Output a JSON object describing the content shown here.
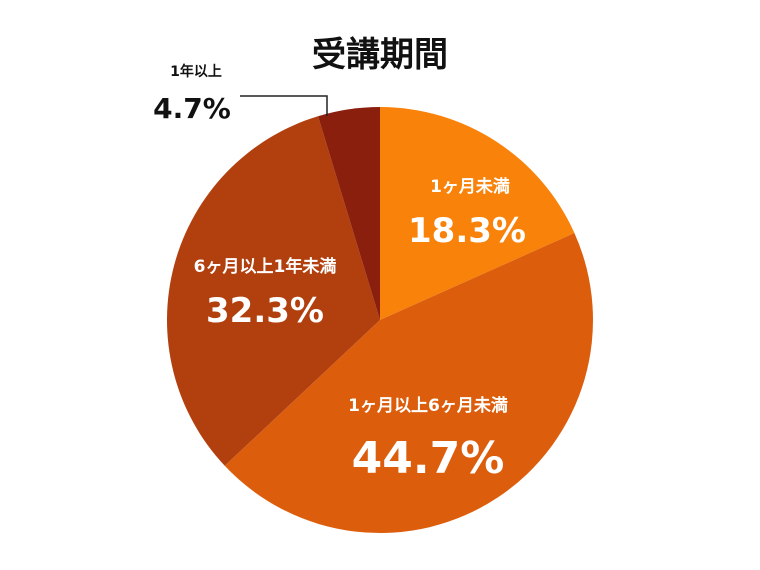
{
  "chart_data": {
    "type": "pie",
    "title": "受講期間",
    "start_angle_deg": 0,
    "direction": "clockwise",
    "slices": [
      {
        "label": "1ヶ月未満",
        "value": 18.3,
        "value_label": "18.3%",
        "color": "#F8820A"
      },
      {
        "label": "1ヶ月以上6ヶ月未満",
        "value": 44.7,
        "value_label": "44.7%",
        "color": "#DC5E0D"
      },
      {
        "label": "6ヶ月以上1年未満",
        "value": 32.3,
        "value_label": "32.3%",
        "color": "#B23F0E"
      },
      {
        "label": "1年以上",
        "value": 4.7,
        "value_label": "4.7%",
        "color": "#8B1F0D"
      }
    ]
  }
}
